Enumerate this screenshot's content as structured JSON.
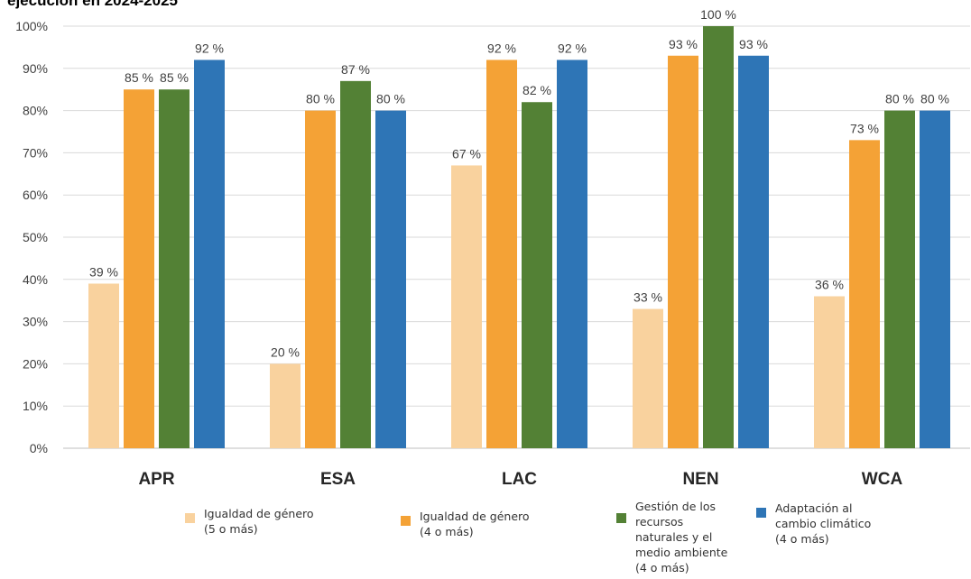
{
  "chart_data": {
    "type": "bar",
    "title": "ejecución en 2024-2025",
    "categories": [
      "APR",
      "ESA",
      "LAC",
      "NEN",
      "WCA"
    ],
    "ylim": [
      0,
      100
    ],
    "yticks": [
      "0%",
      "10%",
      "20%",
      "30%",
      "40%",
      "50%",
      "60%",
      "70%",
      "80%",
      "90%",
      "100%"
    ],
    "grid": true,
    "legend_position": "bottom",
    "series": [
      {
        "name": "Igualdad de género\n(5 o más)",
        "color": "#f9d29e",
        "values": [
          39,
          20,
          67,
          33,
          36
        ],
        "labels": [
          "39 %",
          "20 %",
          "67 %",
          "33 %",
          "36 %"
        ]
      },
      {
        "name": "Igualdad de género\n(4 o más)",
        "color": "#f4a236",
        "values": [
          85,
          80,
          92,
          93,
          73
        ],
        "labels": [
          "85 %",
          "80 %",
          "92 %",
          "93 %",
          "73 %"
        ]
      },
      {
        "name": "Gestión de los\nrecursos\nnaturales y el\nmedio ambiente\n(4 o más)",
        "color": "#538135",
        "values": [
          85,
          87,
          82,
          100,
          80
        ],
        "labels": [
          "85 %",
          "87 %",
          "82 %",
          "100 %",
          "80 %"
        ]
      },
      {
        "name": "Adaptación al\ncambio climático\n(4 o más)",
        "color": "#2e75b6",
        "values": [
          92,
          80,
          92,
          93,
          80
        ],
        "labels": [
          "92 %",
          "80 %",
          "92 %",
          "93 %",
          "80 %"
        ]
      }
    ]
  }
}
